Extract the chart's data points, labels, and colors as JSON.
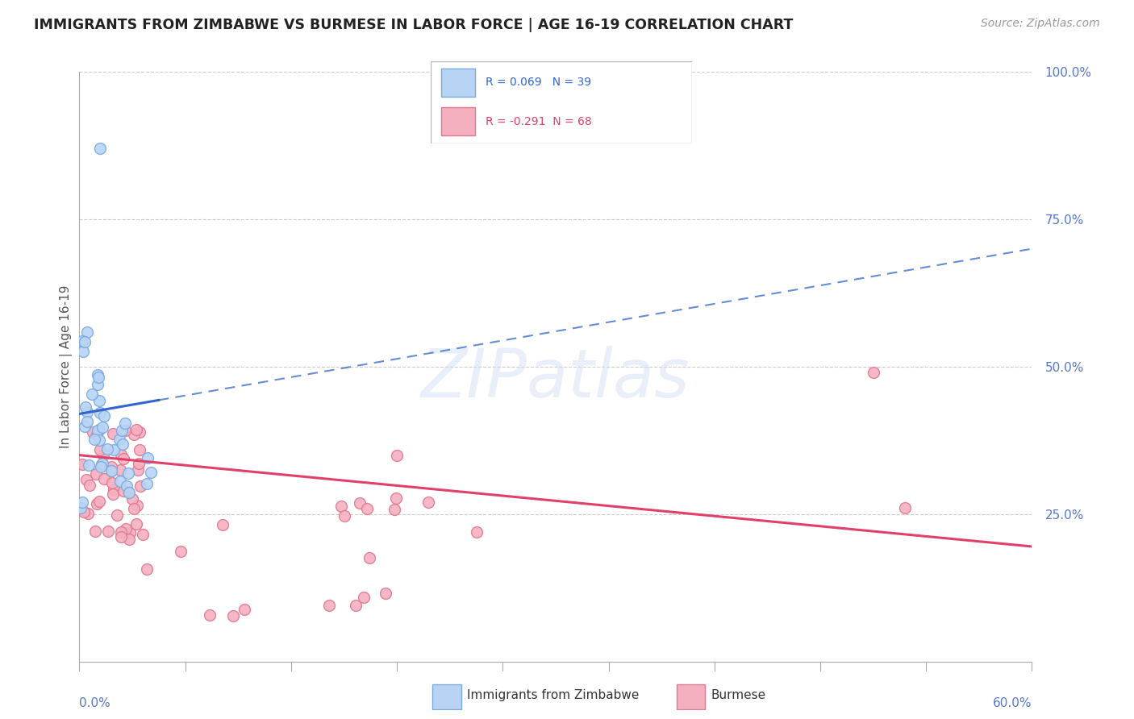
{
  "title": "IMMIGRANTS FROM ZIMBABWE VS BURMESE IN LABOR FORCE | AGE 16-19 CORRELATION CHART",
  "source": "Source: ZipAtlas.com",
  "ylabel": "In Labor Force | Age 16-19",
  "watermark": "ZIPatlas",
  "zimbabwe_color": "#b8d4f5",
  "burmese_color": "#f5b0c0",
  "zimbabwe_edge": "#7aaae0",
  "burmese_edge": "#e07890",
  "trend_zimbabwe_color": "#3366cc",
  "trend_burmese_color": "#e0406a",
  "xmin": 0.0,
  "xmax": 0.6,
  "ymin": 0.0,
  "ymax": 1.0,
  "zim_R": 0.069,
  "bur_R": -0.291,
  "zim_N": 39,
  "bur_N": 68,
  "legend_text_color_zim": "#3366cc",
  "legend_text_color_bur": "#e0406a",
  "right_tick_color": "#5577cc",
  "xlabel_color": "#5577cc"
}
